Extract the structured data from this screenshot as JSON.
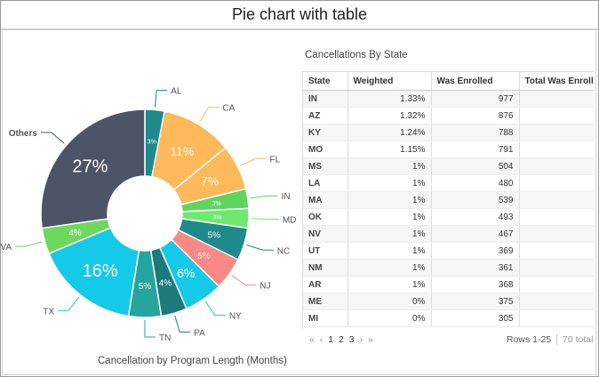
{
  "page_title": "Pie chart with table",
  "chart_data": {
    "type": "pie",
    "title": "Cancellation by Program Length (Months)",
    "donut": true,
    "slices": [
      {
        "label": "AL",
        "value": 3,
        "display": "3%",
        "color": "#1e8a8c"
      },
      {
        "label": "CA",
        "value": 11,
        "display": "11%",
        "color": "#fdb95a"
      },
      {
        "label": "FL",
        "value": 7,
        "display": "7%",
        "color": "#fdb95a"
      },
      {
        "label": "IN",
        "value": 3,
        "display": "3%",
        "color": "#5fd45f"
      },
      {
        "label": "MD",
        "value": 3,
        "display": "3%",
        "color": "#6ee86e"
      },
      {
        "label": "NC",
        "value": 5,
        "display": "5%",
        "color": "#1e8a8c"
      },
      {
        "label": "NJ",
        "value": 5,
        "display": "5%",
        "color": "#fa8885"
      },
      {
        "label": "NY",
        "value": 6,
        "display": "6%",
        "color": "#15c9e8"
      },
      {
        "label": "PA",
        "value": 4,
        "display": "4%",
        "color": "#1c7a7d"
      },
      {
        "label": "TN",
        "value": 5,
        "display": "5%",
        "color": "#26a49e"
      },
      {
        "label": "TX",
        "value": 16,
        "display": "16%",
        "color": "#15c9e8"
      },
      {
        "label": "VA",
        "value": 4,
        "display": "4%",
        "color": "#6ed85c"
      },
      {
        "label": "Others",
        "value": 27,
        "display": "27%",
        "color": "#4e5468"
      }
    ]
  },
  "table": {
    "title": "Cancellations By State",
    "columns": [
      "State",
      "Weighted",
      "Was Enrolled",
      "Total Was Enrolled"
    ],
    "rows": [
      {
        "state": "IN",
        "weighted": "1.33%",
        "enrolled": "977"
      },
      {
        "state": "AZ",
        "weighted": "1.32%",
        "enrolled": "876"
      },
      {
        "state": "KY",
        "weighted": "1.24%",
        "enrolled": "788"
      },
      {
        "state": "MO",
        "weighted": "1.15%",
        "enrolled": "791"
      },
      {
        "state": "MS",
        "weighted": "1%",
        "enrolled": "504"
      },
      {
        "state": "LA",
        "weighted": "1%",
        "enrolled": "480"
      },
      {
        "state": "MA",
        "weighted": "1%",
        "enrolled": "539"
      },
      {
        "state": "OK",
        "weighted": "1%",
        "enrolled": "493"
      },
      {
        "state": "NV",
        "weighted": "1%",
        "enrolled": "467"
      },
      {
        "state": "UT",
        "weighted": "1%",
        "enrolled": "369"
      },
      {
        "state": "NM",
        "weighted": "1%",
        "enrolled": "361"
      },
      {
        "state": "AR",
        "weighted": "1%",
        "enrolled": "368"
      },
      {
        "state": "ME",
        "weighted": "0%",
        "enrolled": "375"
      },
      {
        "state": "MI",
        "weighted": "0%",
        "enrolled": "305"
      }
    ]
  },
  "pager": {
    "first": "«",
    "prev": "‹",
    "pages": [
      "1",
      "2",
      "3"
    ],
    "next": "›",
    "last": "»",
    "rows_info": "Rows 1-25",
    "total": "70 total"
  }
}
